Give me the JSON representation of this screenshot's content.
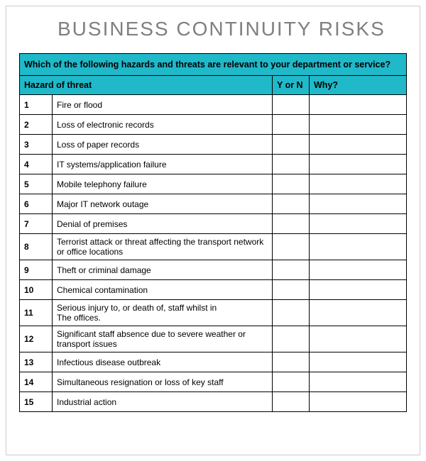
{
  "title": "BUSINESS CONTINUITY RISKS",
  "question": "Which of the following hazards and threats are relevant to your department or service?",
  "columns": {
    "hazard": "Hazard of threat",
    "yn": "Y or N",
    "why": "Why?"
  },
  "header_bg": "#1fb9c9",
  "border_color": "#000000",
  "title_color": "#808080",
  "rows": [
    {
      "num": "1",
      "hazard": "Fire or flood",
      "yn": "",
      "why": ""
    },
    {
      "num": "2",
      "hazard": "Loss of electronic records",
      "yn": "",
      "why": ""
    },
    {
      "num": "3",
      "hazard": "Loss of paper records",
      "yn": "",
      "why": ""
    },
    {
      "num": "4",
      "hazard": "IT systems/application failure",
      "yn": "",
      "why": ""
    },
    {
      "num": "5",
      "hazard": "Mobile telephony failure",
      "yn": "",
      "why": ""
    },
    {
      "num": "6",
      "hazard": "Major IT network outage",
      "yn": "",
      "why": ""
    },
    {
      "num": "7",
      "hazard": "Denial of premises",
      "yn": "",
      "why": ""
    },
    {
      "num": "8",
      "hazard": "Terrorist attack or threat affecting the transport network or office locations",
      "yn": "",
      "why": ""
    },
    {
      "num": "9",
      "hazard": "Theft or criminal damage",
      "yn": "",
      "why": ""
    },
    {
      "num": "10",
      "hazard": "Chemical contamination",
      "yn": "",
      "why": ""
    },
    {
      "num": "11",
      "hazard": "Serious injury to, or death of, staff whilst in\nThe offices.",
      "yn": "",
      "why": ""
    },
    {
      "num": "12",
      "hazard": "Significant staff absence due to severe weather or transport issues",
      "yn": "",
      "why": ""
    },
    {
      "num": "13",
      "hazard": "Infectious disease outbreak",
      "yn": "",
      "why": ""
    },
    {
      "num": "14",
      "hazard": "Simultaneous resignation or loss of key staff",
      "yn": "",
      "why": ""
    },
    {
      "num": "15",
      "hazard": "Industrial action",
      "yn": "",
      "why": ""
    }
  ]
}
